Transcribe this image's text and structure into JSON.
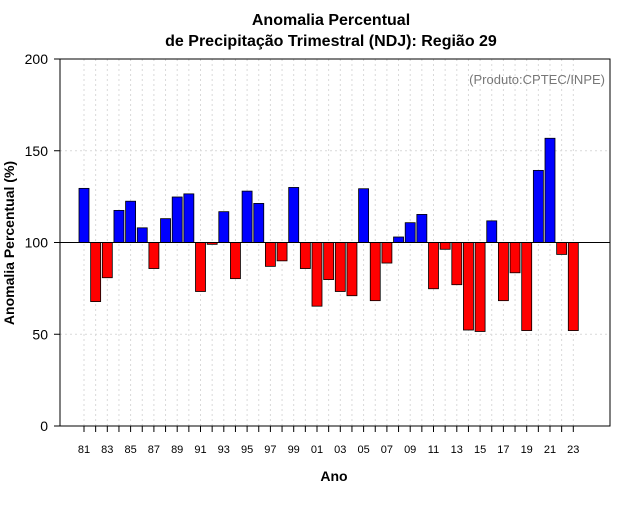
{
  "chart_data": {
    "type": "bar",
    "title_line1": "Anomalia Percentual",
    "title_line2": "de Precipitação Trimestral (NDJ): Região 29",
    "xlabel": "Ano",
    "ylabel": "Anomalia Percentual (%)",
    "credit": "(Produto:CPTEC/INPE)",
    "ylim": [
      0,
      200
    ],
    "yticks": [
      0,
      50,
      100,
      150,
      200
    ],
    "baseline": 100,
    "grid": true,
    "colors": {
      "above": "#0000ff",
      "below": "#ff0000",
      "outline": "#000000",
      "grid": "#d9d9d9"
    },
    "categories": [
      "81",
      "82",
      "83",
      "84",
      "85",
      "86",
      "87",
      "88",
      "89",
      "90",
      "91",
      "92",
      "93",
      "94",
      "95",
      "96",
      "97",
      "98",
      "99",
      "00",
      "01",
      "02",
      "03",
      "04",
      "05",
      "06",
      "07",
      "08",
      "09",
      "10",
      "11",
      "12",
      "13",
      "14",
      "15",
      "16",
      "17",
      "18",
      "19",
      "20",
      "21",
      "22",
      "23"
    ],
    "xtick_labels": [
      "81",
      "83",
      "85",
      "87",
      "89",
      "91",
      "93",
      "95",
      "97",
      "99",
      "01",
      "03",
      "05",
      "07",
      "09",
      "11",
      "13",
      "15",
      "17",
      "19",
      "21",
      "23"
    ],
    "values": [
      129.5,
      67.8,
      80.8,
      117.5,
      122.5,
      108,
      85.8,
      113,
      124.8,
      126.5,
      73.3,
      99,
      116.8,
      80.3,
      128,
      121.3,
      87,
      90,
      130,
      85.8,
      65.3,
      79.8,
      73.3,
      71,
      129.3,
      68.3,
      88.8,
      103,
      110.8,
      115.3,
      74.8,
      96.3,
      77,
      52.3,
      51.5,
      111.8,
      68.3,
      83.5,
      52,
      139.3,
      156.8,
      93.5,
      52
    ]
  }
}
